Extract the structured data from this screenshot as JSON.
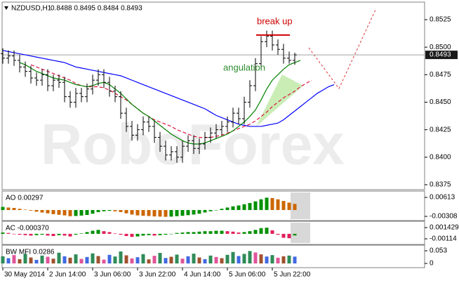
{
  "chart_data": [
    {
      "type": "ohlc",
      "title": "NZDUSD,H1",
      "subtitle": "0.8488 0.8495 0.8484 0.8493",
      "watermark": "RoboForex",
      "categories": [
        "30 May 2014",
        null,
        null,
        null,
        null,
        null,
        null,
        null,
        "2 Jun 14:00",
        null,
        null,
        null,
        null,
        null,
        null,
        null,
        "3 Jun 06:00",
        null,
        null,
        null,
        null,
        null,
        null,
        null,
        "3 Jun 22:00",
        null,
        null,
        null,
        null,
        null,
        null,
        null,
        "4 Jun 14:00",
        null,
        null,
        null,
        null,
        null,
        null,
        null,
        "5 Jun 06:00",
        null,
        null,
        null,
        null,
        null,
        null,
        null,
        "5 Jun 22:00",
        null,
        null,
        null,
        null,
        null,
        null,
        null,
        null,
        null,
        null,
        null
      ],
      "open": [
        0.8494,
        0.849,
        0.8492,
        0.8488,
        0.8482,
        0.8478,
        0.8472,
        0.847,
        0.8475,
        0.8465,
        0.847,
        0.8468,
        0.8455,
        0.845,
        0.8458,
        0.8455,
        0.8462,
        0.847,
        0.8475,
        0.8468,
        0.846,
        0.8455,
        0.844,
        0.8428,
        0.842,
        0.8425,
        0.8432,
        0.8428,
        0.8418,
        0.841,
        0.8402,
        0.8405,
        0.84,
        0.841,
        0.8415,
        0.8408,
        0.8412,
        0.8418,
        0.8422,
        0.8425,
        0.8428,
        0.8432,
        0.844,
        0.8435,
        0.845,
        0.8465,
        0.8485,
        0.8505,
        0.851,
        0.8502,
        0.8498,
        0.849,
        0.8488,
        null,
        null,
        null,
        null,
        null,
        null,
        null
      ],
      "high": [
        0.8499,
        0.8497,
        0.8497,
        0.8493,
        0.8487,
        0.8483,
        0.8477,
        0.848,
        0.848,
        0.8475,
        0.8475,
        0.8473,
        0.846,
        0.8463,
        0.8463,
        0.8467,
        0.8475,
        0.848,
        0.848,
        0.8473,
        0.8465,
        0.846,
        0.8445,
        0.8433,
        0.843,
        0.8437,
        0.8437,
        0.8433,
        0.8423,
        0.8415,
        0.841,
        0.841,
        0.8415,
        0.842,
        0.842,
        0.8417,
        0.8423,
        0.8427,
        0.843,
        0.8433,
        0.8437,
        0.8445,
        0.8445,
        0.8455,
        0.847,
        0.849,
        0.851,
        0.8515,
        0.8515,
        0.8507,
        0.8503,
        0.8496,
        0.8495,
        null,
        null,
        null,
        null,
        null,
        null,
        null
      ],
      "low": [
        0.8485,
        0.8485,
        0.8483,
        0.8477,
        0.8473,
        0.8467,
        0.8465,
        0.8465,
        0.846,
        0.846,
        0.8463,
        0.845,
        0.8445,
        0.8445,
        0.845,
        0.845,
        0.8457,
        0.8465,
        0.8463,
        0.8455,
        0.845,
        0.8435,
        0.8423,
        0.8415,
        0.8415,
        0.842,
        0.8423,
        0.8413,
        0.8405,
        0.8397,
        0.8397,
        0.8395,
        0.8395,
        0.8405,
        0.8403,
        0.8403,
        0.8407,
        0.8413,
        0.8417,
        0.842,
        0.8423,
        0.8427,
        0.843,
        0.843,
        0.8445,
        0.846,
        0.848,
        0.85,
        0.8497,
        0.8493,
        0.8485,
        0.8485,
        0.8484,
        null,
        null,
        null,
        null,
        null,
        null,
        null
      ],
      "close": [
        0.849,
        0.8492,
        0.8488,
        0.8482,
        0.8478,
        0.8472,
        0.847,
        0.8475,
        0.8465,
        0.847,
        0.8468,
        0.8455,
        0.845,
        0.8458,
        0.8455,
        0.8462,
        0.847,
        0.8475,
        0.8468,
        0.846,
        0.8455,
        0.844,
        0.8428,
        0.842,
        0.8425,
        0.8432,
        0.8428,
        0.8418,
        0.841,
        0.8402,
        0.8405,
        0.84,
        0.841,
        0.8415,
        0.8408,
        0.8412,
        0.8418,
        0.8422,
        0.8425,
        0.8428,
        0.8432,
        0.844,
        0.8435,
        0.845,
        0.8465,
        0.8485,
        0.8505,
        0.851,
        0.8502,
        0.8498,
        0.849,
        0.8488,
        0.8493,
        null,
        null,
        null,
        null,
        null,
        null,
        null
      ],
      "color": "#000000",
      "series": [
        {
          "color": "#0000ff",
          "dash": false,
          "values": [
            0.8497,
            0.8496,
            0.8495,
            0.8494,
            0.8493,
            0.8492,
            0.8491,
            0.849,
            0.8489,
            0.8488,
            0.8487,
            0.8486,
            0.8484,
            0.8482,
            0.8481,
            0.848,
            0.8479,
            0.8478,
            0.8477,
            0.8476,
            0.8475,
            0.8474,
            0.8472,
            0.847,
            0.8468,
            0.8466,
            0.8464,
            0.8462,
            0.846,
            0.8458,
            0.8456,
            0.8454,
            0.8452,
            0.845,
            0.8448,
            0.8446,
            0.8444,
            0.8441,
            0.8438,
            0.8436,
            0.8434,
            0.8432,
            0.843,
            0.8429,
            0.8428,
            0.8428,
            0.8428,
            0.8429,
            0.843,
            0.8431,
            0.8434,
            0.8438,
            0.8442,
            0.8446,
            0.845,
            0.8454,
            0.8458,
            0.8461,
            0.8464,
            0.8466
          ]
        },
        {
          "color": "#dc143c",
          "dash": true,
          "values": [
            null,
            null,
            null,
            null,
            null,
            0.8484,
            0.8482,
            0.848,
            0.8478,
            0.8476,
            0.8474,
            0.8472,
            0.847,
            0.8467,
            0.8465,
            0.8464,
            0.8464,
            0.8464,
            0.8463,
            0.8461,
            0.8458,
            0.8455,
            0.8452,
            0.8448,
            0.8444,
            0.844,
            0.8437,
            0.8434,
            0.8432,
            0.843,
            0.8428,
            0.8425,
            0.8423,
            0.8421,
            0.8419,
            0.8418,
            0.8418,
            0.8418,
            0.8419,
            0.842,
            0.8422,
            0.8424,
            0.8426,
            0.8428,
            0.843,
            0.8433,
            0.8437,
            0.8441,
            0.8446,
            0.845,
            0.8454,
            0.8457,
            0.846,
            0.8464,
            0.8467,
            0.847,
            null,
            null,
            null,
            null
          ]
        },
        {
          "color": "#008000",
          "dash": false,
          "values": [
            null,
            null,
            null,
            0.8486,
            0.8484,
            0.8481,
            0.8478,
            0.8476,
            0.8474,
            0.8472,
            0.8471,
            0.847,
            0.8468,
            0.8466,
            0.8465,
            0.8464,
            0.8465,
            0.8467,
            0.8468,
            0.8466,
            0.8462,
            0.8458,
            0.8453,
            0.8448,
            0.8444,
            0.844,
            0.8437,
            0.8433,
            0.8429,
            0.8425,
            0.8421,
            0.8418,
            0.8415,
            0.8413,
            0.8412,
            0.8412,
            0.8413,
            0.8415,
            0.8417,
            0.8419,
            0.8421,
            0.8424,
            0.8428,
            0.8432,
            0.8437,
            0.8443,
            0.8452,
            0.8462,
            0.847,
            0.8475,
            0.848,
            0.8484,
            0.8486,
            0.8488,
            null,
            null,
            null,
            null,
            null,
            null
          ]
        }
      ],
      "last_price": 0.8493,
      "annotations": [
        {
          "text": "break up",
          "color": "#cc0000",
          "value": 0.8511
        },
        {
          "text": "angulation",
          "color": "#2e8b2e"
        }
      ],
      "ylim": [
        0.83705,
        0.85403
      ],
      "yticks": [
        0.8525,
        {
          "value": 0.85,
          "label": "0.8500"
        },
        0.8475,
        {
          "value": 0.845,
          "label": "0.8450"
        },
        0.8425,
        {
          "value": 0.84,
          "label": "0.8400"
        },
        0.8375
      ],
      "grid": false
    },
    {
      "type": "bar",
      "title": "AO 0.00297",
      "up_color": "#009000",
      "down_color": "#cc6600",
      "values": [
        0.0015,
        0.0012,
        0.001,
        0.0006,
        0.0002,
        -0.0003,
        -0.0008,
        -0.0012,
        -0.0016,
        -0.002,
        -0.0023,
        -0.0026,
        -0.003,
        -0.0029,
        -0.0027,
        -0.0024,
        -0.0018,
        -0.001,
        -0.0006,
        -0.0004,
        -0.0006,
        -0.001,
        -0.0016,
        -0.0022,
        -0.0026,
        -0.0028,
        -0.0029,
        -0.0031,
        -0.0032,
        -0.0033,
        -0.0032,
        -0.003,
        -0.0028,
        -0.0025,
        -0.0022,
        -0.0018,
        -0.0012,
        -0.0006,
        0,
        0.0006,
        0.0012,
        0.0018,
        0.0022,
        0.0028,
        0.0034,
        0.0042,
        0.0052,
        0.006,
        0.0058,
        0.0052,
        0.0044,
        0.0036,
        0.00297
      ],
      "ylim": [
        -0.00479,
        0.00886
      ],
      "yticks": [
        0.00613,
        -0.00308
      ]
    },
    {
      "type": "bar",
      "title": "AC -0.000370",
      "up_color": "#009000",
      "down_color": "#e0205a",
      "values": [
        0.0003,
        0.0002,
        -0.0001,
        -0.0002,
        -0.0003,
        -0.0004,
        -0.0003,
        -0.0002,
        -0.0004,
        -0.0005,
        -0.0003,
        -0.0004,
        -0.0006,
        -0.0002,
        0.0001,
        0.0004,
        0.0007,
        0.0009,
        0.0006,
        0.0004,
        0.0001,
        -0.0002,
        -0.0005,
        -0.0007,
        -0.0006,
        -0.0004,
        -0.0003,
        -0.0004,
        -0.0003,
        -0.0002,
        0,
        0.0002,
        0.0003,
        0.0004,
        0.0004,
        0.0005,
        0.0006,
        0.0006,
        0.0007,
        0.0007,
        0.0006,
        0.0005,
        0.0003,
        0.0004,
        0.0006,
        0.0009,
        0.0013,
        0.0014,
        0.0008,
        -0.0002,
        -0.0009,
        -0.001,
        -0.00037
      ],
      "ylim": [
        -0.00226,
        0.0027
      ],
      "yticks": [
        0.001429,
        -0.00114
      ]
    },
    {
      "type": "bar",
      "title": "BW MFI 0.0286",
      "values": [
        0.03,
        0.022,
        0.035,
        0.018,
        0.04,
        0.025,
        0.015,
        0.033,
        0.028,
        0.02,
        0.045,
        0.03,
        0.024,
        0.038,
        0.019,
        0.027,
        0.042,
        0.031,
        0.016,
        0.036,
        0.029,
        0.05,
        0.034,
        0.021,
        0.026,
        0.039,
        0.017,
        0.032,
        0.044,
        0.023,
        0.028,
        0.037,
        0.02,
        0.03,
        0.041,
        0.025,
        0.018,
        0.033,
        0.027,
        0.022,
        0.036,
        0.048,
        0.031,
        0.04,
        0.052,
        0.046,
        0.038,
        0.029,
        0.035,
        0.024,
        0.03,
        0.033,
        0.0286
      ],
      "colors": [
        "#2e8b57",
        "#4169e1",
        "#e0559a",
        "#a0522d",
        "#2e8b57",
        "#a0522d",
        "#4169e1",
        "#2e8b57",
        "#e0559a",
        "#a0522d",
        "#2e8b57",
        "#4169e1",
        "#a0522d",
        "#2e8b57",
        "#e0559a",
        "#4169e1",
        "#2e8b57",
        "#a0522d",
        "#e0559a",
        "#4169e1",
        "#2e8b57",
        "#2e8b57",
        "#a0522d",
        "#e0559a",
        "#4169e1",
        "#2e8b57",
        "#a0522d",
        "#e0559a",
        "#2e8b57",
        "#4169e1",
        "#a0522d",
        "#2e8b57",
        "#e0559a",
        "#4169e1",
        "#2e8b57",
        "#a0522d",
        "#4169e1",
        "#2e8b57",
        "#e0559a",
        "#a0522d",
        "#2e8b57",
        "#2e8b57",
        "#4169e1",
        "#2e8b57",
        "#2e8b57",
        "#e0559a",
        "#a0522d",
        "#4169e1",
        "#2e8b57",
        "#e0559a",
        "#a0522d",
        "#2e8b57",
        "#4169e1"
      ],
      "ylim": [
        -0.0147,
        0.0736
      ],
      "yticks": [
        0.053,
        0
      ]
    }
  ]
}
